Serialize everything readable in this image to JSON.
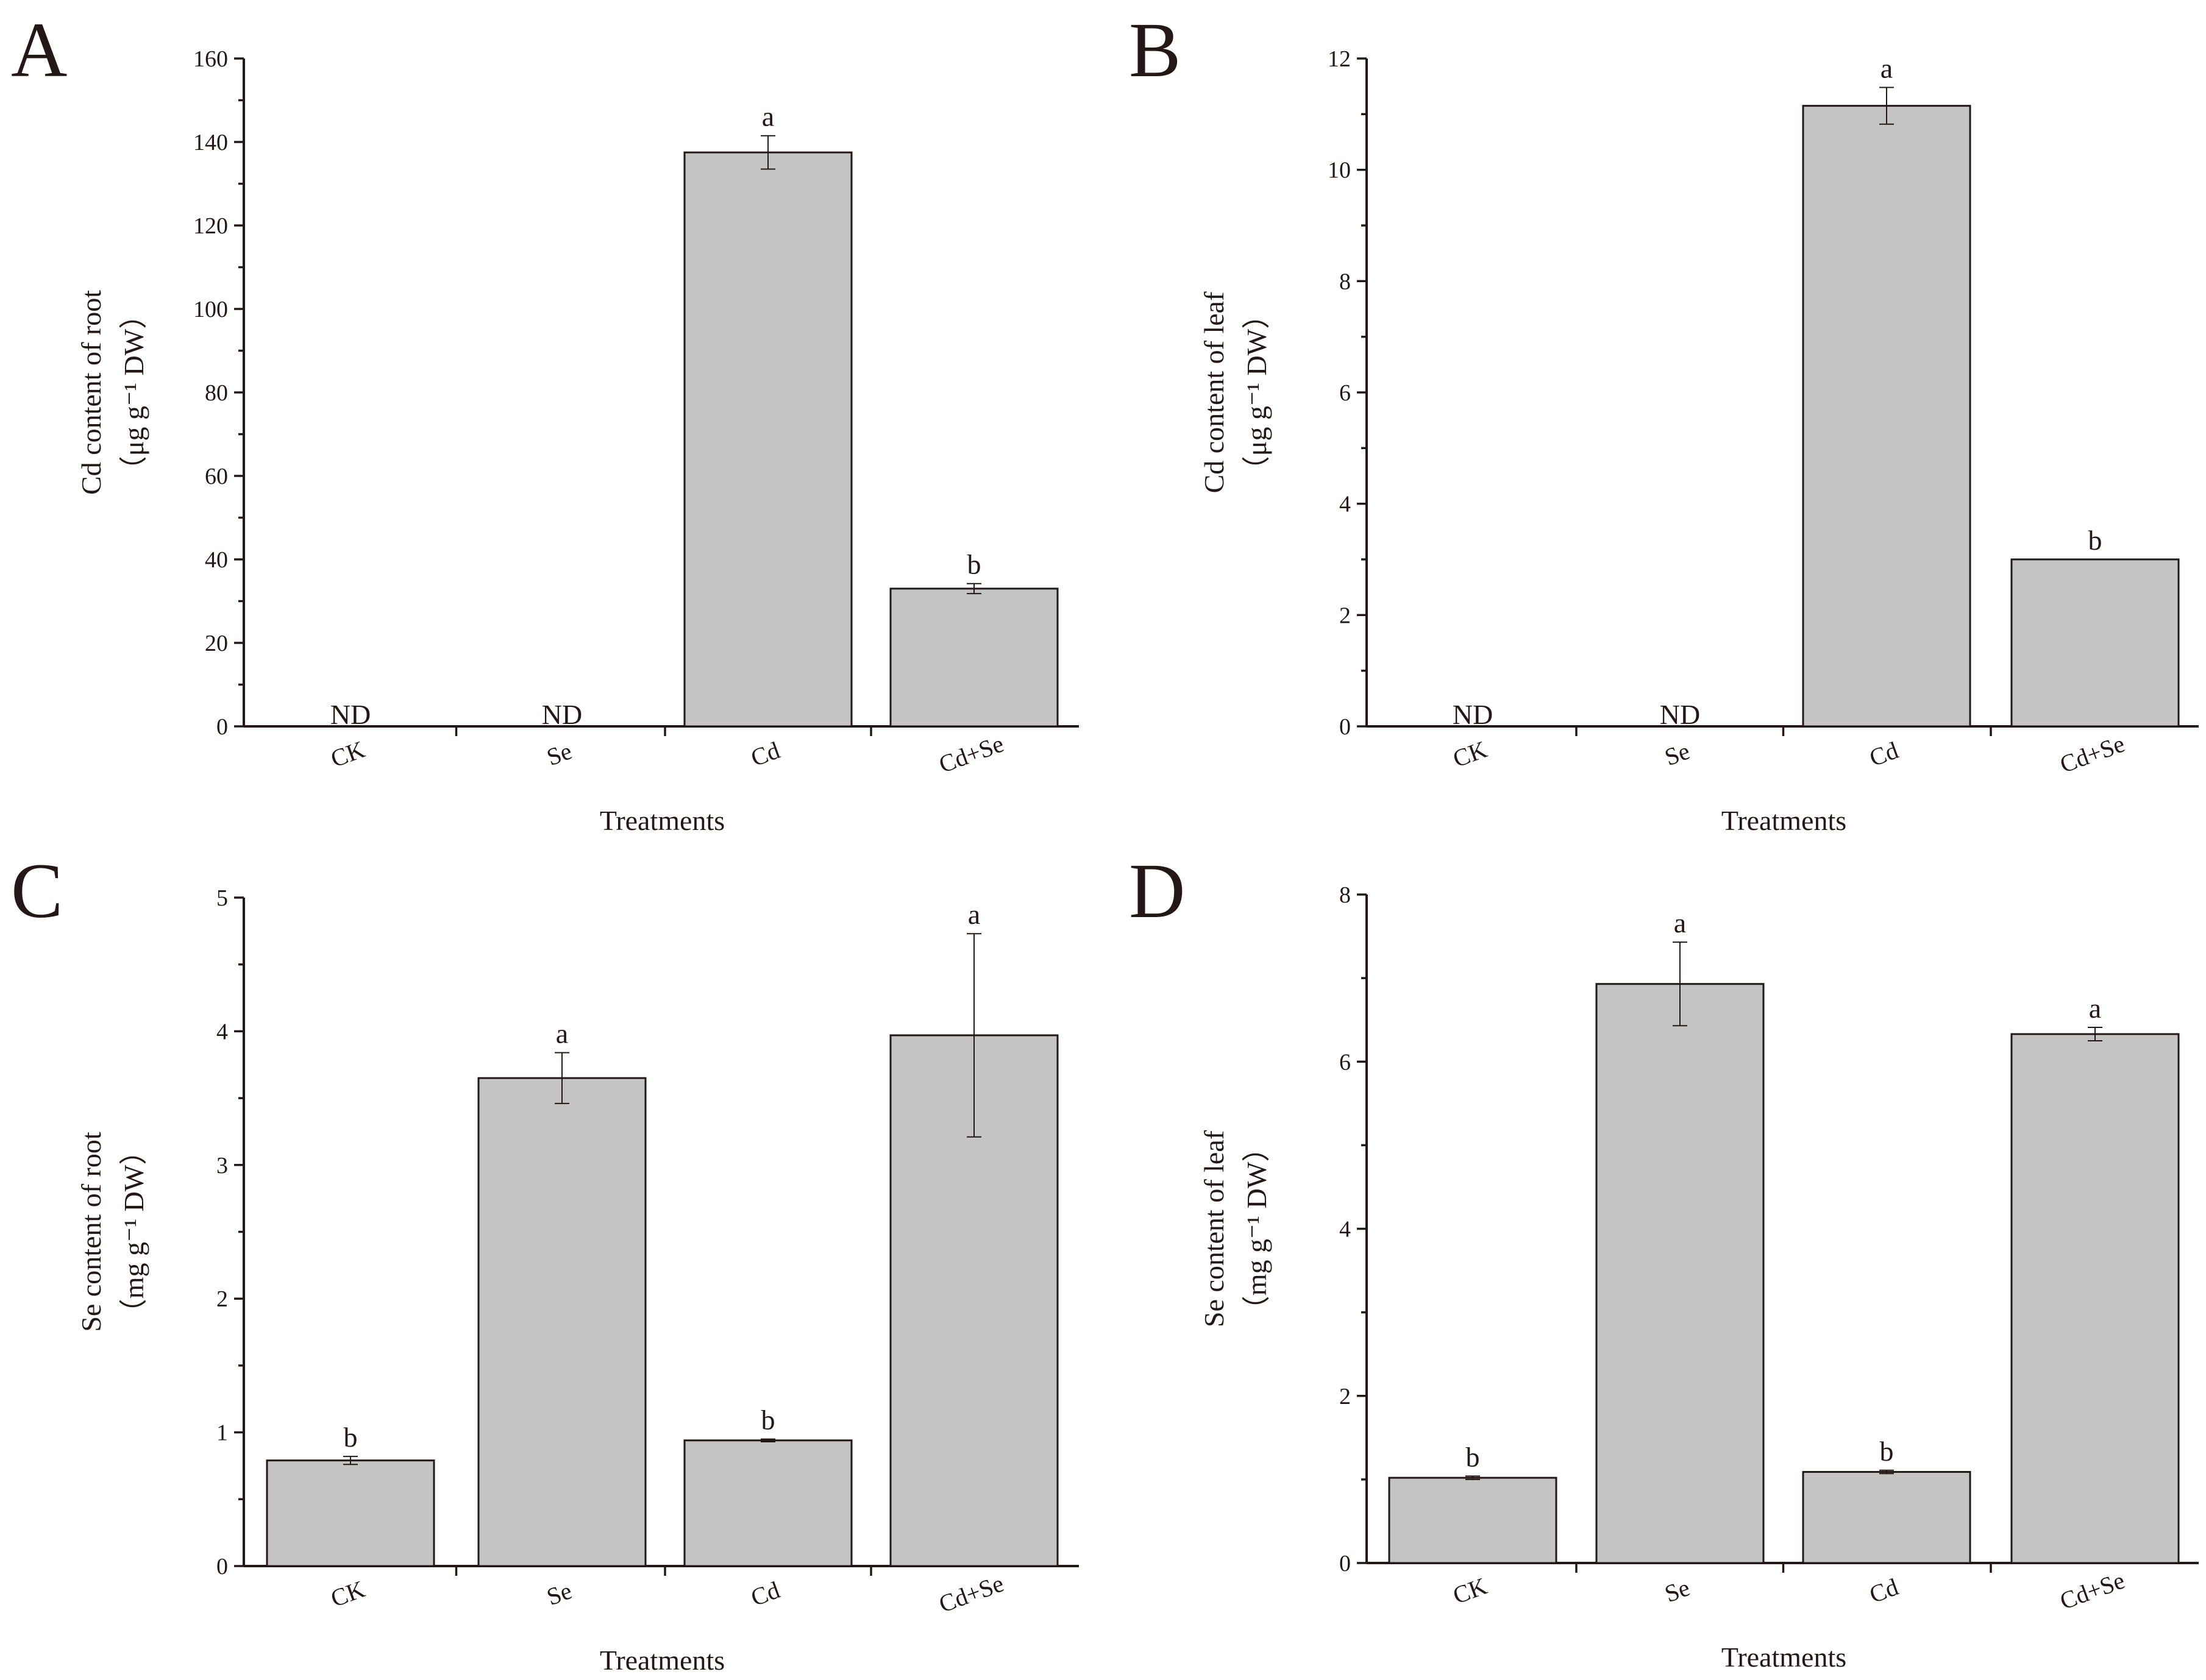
{
  "chart_data": [
    {
      "panel": "A",
      "type": "bar",
      "categories": [
        "CK",
        "Se",
        "Cd",
        "Cd+Se"
      ],
      "values": [
        0,
        0,
        137.5,
        33
      ],
      "errors": [
        null,
        null,
        4,
        1.2
      ],
      "significance": [
        "",
        "",
        "a",
        "b"
      ],
      "not_detected": [
        "ND",
        "ND",
        "",
        ""
      ],
      "xlabel": "Treatments",
      "ylabel_line1": "Cd content of root",
      "ylabel_line2": "（μg g⁻¹ DW）",
      "ylim": [
        0,
        160
      ],
      "yticks": [
        0,
        20,
        40,
        60,
        80,
        100,
        120,
        140,
        160
      ]
    },
    {
      "panel": "B",
      "type": "bar",
      "categories": [
        "CK",
        "Se",
        "Cd",
        "Cd+Se"
      ],
      "values": [
        0,
        0,
        11.15,
        3
      ],
      "errors": [
        null,
        null,
        0.33,
        null
      ],
      "significance": [
        "",
        "",
        "a",
        "b"
      ],
      "not_detected": [
        "ND",
        "ND",
        "",
        ""
      ],
      "xlabel": "Treatments",
      "ylabel_line1": "Cd content of leaf",
      "ylabel_line2": "（μg g⁻¹ DW）",
      "ylim": [
        0,
        12
      ],
      "yticks": [
        0,
        2,
        4,
        6,
        8,
        10,
        12
      ]
    },
    {
      "panel": "C",
      "type": "bar",
      "categories": [
        "CK",
        "Se",
        "Cd",
        "Cd+Se"
      ],
      "values": [
        0.79,
        3.65,
        0.94,
        3.97
      ],
      "errors": [
        0.03,
        0.19,
        0.01,
        0.76
      ],
      "significance": [
        "b",
        "a",
        "b",
        "a"
      ],
      "not_detected": [
        "",
        "",
        "",
        ""
      ],
      "xlabel": "Treatments",
      "ylabel_line1": "Se content of root",
      "ylabel_line2": "（mg g⁻¹ DW）",
      "ylim": [
        0,
        5
      ],
      "yticks": [
        0,
        1,
        2,
        3,
        4,
        5
      ]
    },
    {
      "panel": "D",
      "type": "bar",
      "categories": [
        "CK",
        "Se",
        "Cd",
        "Cd+Se"
      ],
      "values": [
        1.02,
        6.93,
        1.09,
        6.33
      ],
      "errors": [
        0.02,
        0.5,
        0.02,
        0.08
      ],
      "significance": [
        "b",
        "a",
        "b",
        "a"
      ],
      "not_detected": [
        "",
        "",
        "",
        ""
      ],
      "xlabel": "Treatments",
      "ylabel_line1": "Se content of leaf",
      "ylabel_line2": "（mg g⁻¹ DW）",
      "ylim": [
        0,
        8
      ],
      "yticks": [
        0,
        2,
        4,
        6,
        8
      ]
    }
  ],
  "colors": {
    "bar_fill": "#c4c4c4",
    "ink": "#231815",
    "background": "#ffffff"
  }
}
